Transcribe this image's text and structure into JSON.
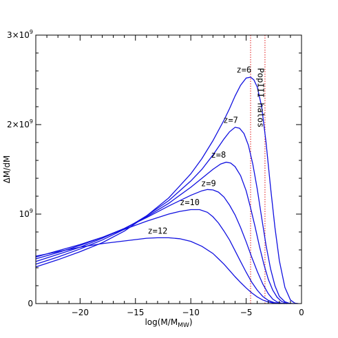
{
  "chart_data": {
    "type": "line",
    "title": "",
    "xlabel": "log(M/M",
    "xlabel_sub": "MW",
    "xlabel_close": ")",
    "ylabel": "ΔM/dM",
    "xlim": [
      -24,
      0
    ],
    "ylim": [
      0,
      3000000000.0
    ],
    "x_ticks": [
      {
        "value": -20,
        "label": "−20"
      },
      {
        "value": -15,
        "label": "−15"
      },
      {
        "value": -10,
        "label": "−10"
      },
      {
        "value": -5,
        "label": "−5"
      },
      {
        "value": 0,
        "label": "0"
      }
    ],
    "y_ticks": [
      {
        "value": 0,
        "label": "0",
        "sup": ""
      },
      {
        "value": 1000000000.0,
        "label": "10",
        "sup": "9"
      },
      {
        "value": 2000000000.0,
        "label": "2×10",
        "sup": "9"
      },
      {
        "value": 3000000000.0,
        "label": "3×10",
        "sup": "9"
      }
    ],
    "series": [
      {
        "name": "z=6",
        "x": [
          -24,
          -22,
          -20,
          -18,
          -16,
          -14,
          -12,
          -10,
          -9,
          -8,
          -7,
          -6.5,
          -6,
          -5.5,
          -5,
          -4.6,
          -4.3,
          -4,
          -3.6,
          -3.2,
          -2.8,
          -2.4,
          -2,
          -1.5,
          -1,
          -0.6,
          -0.3
        ],
        "y": [
          410000000.0,
          490000000.0,
          580000000.0,
          680000000.0,
          810000000.0,
          980000000.0,
          1180000000.0,
          1450000000.0,
          1620000000.0,
          1820000000.0,
          2050000000.0,
          2180000000.0,
          2320000000.0,
          2440000000.0,
          2520000000.0,
          2530000000.0,
          2500000000.0,
          2420000000.0,
          2200000000.0,
          1800000000.0,
          1300000000.0,
          850000000.0,
          480000000.0,
          180000000.0,
          40000000.0,
          5000000.0,
          0
        ]
      },
      {
        "name": "z=7",
        "x": [
          -24,
          -22,
          -20,
          -18,
          -16,
          -14,
          -12,
          -10,
          -9,
          -8,
          -7,
          -6.5,
          -6,
          -5.6,
          -5.2,
          -4.8,
          -4.4,
          -4,
          -3.6,
          -3.2,
          -2.8,
          -2.4,
          -2,
          -1.5,
          -1.1,
          -0.7
        ],
        "y": [
          440000000.0,
          520000000.0,
          610000000.0,
          710000000.0,
          830000000.0,
          980000000.0,
          1150000000.0,
          1370000000.0,
          1500000000.0,
          1660000000.0,
          1840000000.0,
          1920000000.0,
          1970000000.0,
          1960000000.0,
          1900000000.0,
          1770000000.0,
          1560000000.0,
          1280000000.0,
          960000000.0,
          650000000.0,
          390000000.0,
          200000000.0,
          80000000.0,
          20000000.0,
          3000000.0,
          0
        ]
      },
      {
        "name": "z=8",
        "x": [
          -24,
          -22,
          -20,
          -18,
          -16,
          -14,
          -12,
          -10,
          -9,
          -8,
          -7.3,
          -6.8,
          -6.4,
          -6,
          -5.5,
          -5,
          -4.6,
          -4.2,
          -3.8,
          -3.4,
          -3,
          -2.6,
          -2.2,
          -1.8,
          -1.4,
          -1
        ],
        "y": [
          470000000.0,
          550000000.0,
          630000000.0,
          730000000.0,
          840000000.0,
          970000000.0,
          1120000000.0,
          1300000000.0,
          1400000000.0,
          1500000000.0,
          1560000000.0,
          1580000000.0,
          1570000000.0,
          1530000000.0,
          1430000000.0,
          1260000000.0,
          1070000000.0,
          860000000.0,
          640000000.0,
          440000000.0,
          270000000.0,
          150000000.0,
          70000000.0,
          25000000.0,
          5000000.0,
          0
        ]
      },
      {
        "name": "z=9",
        "x": [
          -24,
          -22,
          -20,
          -18,
          -16,
          -14,
          -12,
          -10,
          -9,
          -8.5,
          -8,
          -7.5,
          -7,
          -6.5,
          -6,
          -5.5,
          -5,
          -4.5,
          -4,
          -3.5,
          -3,
          -2.6,
          -2.2,
          -1.8,
          -1.3
        ],
        "y": [
          500000000.0,
          570000000.0,
          650000000.0,
          740000000.0,
          840000000.0,
          960000000.0,
          1090000000.0,
          1210000000.0,
          1260000000.0,
          1275000000.0,
          1270000000.0,
          1245000000.0,
          1190000000.0,
          1100000000.0,
          990000000.0,
          850000000.0,
          690000000.0,
          520000000.0,
          360000000.0,
          220000000.0,
          110000000.0,
          50000000.0,
          18000000.0,
          4000000.0,
          0
        ]
      },
      {
        "name": "z=10",
        "x": [
          -24,
          -22,
          -20,
          -18,
          -16,
          -14,
          -12,
          -11,
          -10,
          -9.2,
          -8.5,
          -8,
          -7.5,
          -7,
          -6.5,
          -6,
          -5.5,
          -5,
          -4.5,
          -4,
          -3.5,
          -3,
          -2.5,
          -2,
          -1.5
        ],
        "y": [
          520000000.0,
          590000000.0,
          660000000.0,
          740000000.0,
          830000000.0,
          920000000.0,
          1000000000.0,
          1030000000.0,
          1050000000.0,
          1050000000.0,
          1020000000.0,
          970000000.0,
          900000000.0,
          810000000.0,
          710000000.0,
          590000000.0,
          470000000.0,
          350000000.0,
          240000000.0,
          150000000.0,
          80000000.0,
          35000000.0,
          12000000.0,
          3000000.0,
          0
        ]
      },
      {
        "name": "z=12",
        "x": [
          -24,
          -22,
          -20,
          -18,
          -16,
          -14,
          -13,
          -12,
          -11,
          -10,
          -9,
          -8,
          -7.5,
          -7,
          -6.5,
          -6,
          -5.5,
          -5,
          -4.5,
          -4,
          -3.5,
          -3,
          -2.5,
          -2
        ],
        "y": [
          530000000.0,
          580000000.0,
          630000000.0,
          670000000.0,
          700000000.0,
          730000000.0,
          735000000.0,
          735000000.0,
          725000000.0,
          695000000.0,
          640000000.0,
          560000000.0,
          500000000.0,
          440000000.0,
          370000000.0,
          300000000.0,
          235000000.0,
          175000000.0,
          120000000.0,
          75000000.0,
          40000000.0,
          18000000.0,
          6000000.0,
          0
        ]
      }
    ],
    "labels": [
      {
        "text": "z=6",
        "x": -5.2,
        "y": 2580000000.0
      },
      {
        "text": "z=7",
        "x": -6.4,
        "y": 2020000000.0
      },
      {
        "text": "z=8",
        "x": -7.5,
        "y": 1630000000.0
      },
      {
        "text": "z=9",
        "x": -8.4,
        "y": 1310000000.0
      },
      {
        "text": "z=10",
        "x": -10.1,
        "y": 1100000000.0
      },
      {
        "text": "z=12",
        "x": -13,
        "y": 780000000.0
      }
    ],
    "vertical_lines": [
      -4.6,
      -3.3
    ],
    "annotation": {
      "text": "PopIII halos",
      "x": -3.95,
      "y": 2300000000.0
    },
    "colors": {
      "curve": "#1010e0",
      "vline": "#e01010"
    }
  }
}
